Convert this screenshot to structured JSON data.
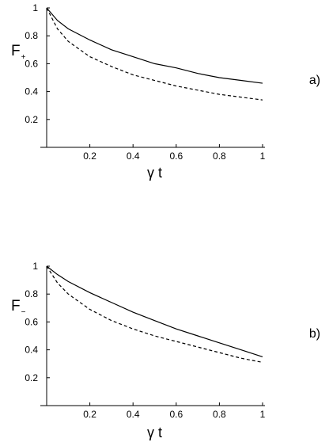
{
  "chart_data": [
    {
      "type": "line",
      "panel_label": "a)",
      "ylabel_main": "F",
      "ylabel_sub": "+",
      "xlabel": "γ t",
      "xlim": [
        0,
        1
      ],
      "ylim": [
        0,
        1
      ],
      "xticks": [
        "0.2",
        "0.4",
        "0.6",
        "0.8",
        "1"
      ],
      "yticks": [
        "0.2",
        "0.4",
        "0.6",
        "0.8",
        "1"
      ],
      "series": [
        {
          "style": "solid",
          "x": [
            0,
            0.05,
            0.1,
            0.2,
            0.3,
            0.4,
            0.5,
            0.6,
            0.7,
            0.8,
            0.9,
            1.0
          ],
          "y": [
            1.0,
            0.91,
            0.85,
            0.77,
            0.7,
            0.65,
            0.6,
            0.57,
            0.53,
            0.5,
            0.48,
            0.46
          ]
        },
        {
          "style": "dashed",
          "x": [
            0,
            0.05,
            0.1,
            0.2,
            0.3,
            0.4,
            0.5,
            0.6,
            0.7,
            0.8,
            0.9,
            1.0
          ],
          "y": [
            1.0,
            0.85,
            0.76,
            0.65,
            0.58,
            0.52,
            0.48,
            0.44,
            0.41,
            0.38,
            0.36,
            0.34
          ]
        }
      ]
    },
    {
      "type": "line",
      "panel_label": "b)",
      "ylabel_main": "F",
      "ylabel_sub": "−",
      "xlabel": "γ t",
      "xlim": [
        0,
        1
      ],
      "ylim": [
        0,
        1
      ],
      "xticks": [
        "0.2",
        "0.4",
        "0.6",
        "0.8",
        "1"
      ],
      "yticks": [
        "0.2",
        "0.4",
        "0.6",
        "0.8",
        "1"
      ],
      "series": [
        {
          "style": "solid",
          "x": [
            0,
            0.05,
            0.1,
            0.2,
            0.3,
            0.4,
            0.5,
            0.6,
            0.7,
            0.8,
            0.9,
            1.0
          ],
          "y": [
            1.0,
            0.94,
            0.89,
            0.81,
            0.74,
            0.67,
            0.61,
            0.55,
            0.5,
            0.45,
            0.4,
            0.35
          ]
        },
        {
          "style": "dashed",
          "x": [
            0,
            0.05,
            0.1,
            0.2,
            0.3,
            0.4,
            0.5,
            0.6,
            0.7,
            0.8,
            0.9,
            1.0
          ],
          "y": [
            1.0,
            0.88,
            0.8,
            0.69,
            0.61,
            0.55,
            0.5,
            0.46,
            0.42,
            0.38,
            0.34,
            0.31
          ]
        }
      ]
    }
  ]
}
